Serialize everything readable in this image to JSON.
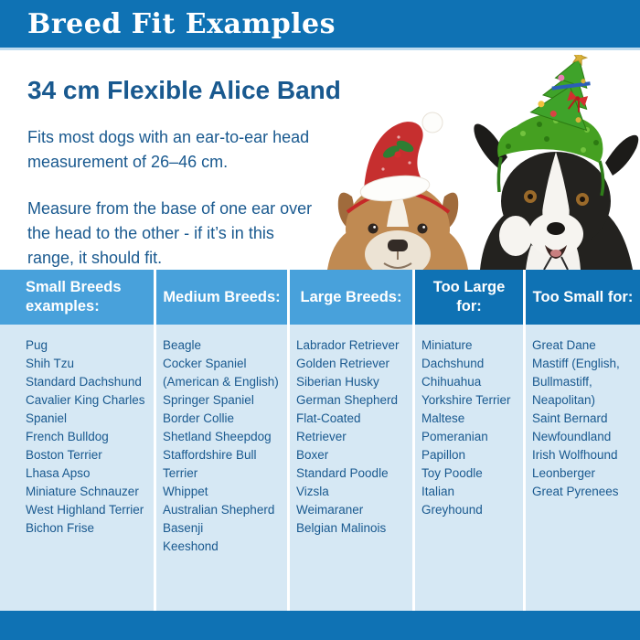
{
  "header": {
    "title": "Breed Fit Examples"
  },
  "product": {
    "title": "34 cm Flexible Alice Band",
    "fit_note": "Fits most dogs with an ear-to-ear head measurement of 26–46 cm.",
    "measure_note": "Measure from the base of one ear over the head to the other - if it’s in this range, it should fit."
  },
  "photo": {
    "description": "Two dogs wearing festive alice bands",
    "dog_left": "Bulldog puppy wearing a red Santa hat headband",
    "dog_right": "Border Collie wearing a green tinsel Christmas tree headband"
  },
  "columns": [
    {
      "label": "Small Breeds examples:",
      "tone": "light",
      "breeds": [
        "Pug",
        "Shih Tzu",
        "Standard Dachshund",
        "Cavalier King Charles Spaniel",
        "French Bulldog",
        "Boston Terrier",
        "Lhasa Apso",
        "Miniature Schnauzer",
        "West Highland Terrier",
        "Bichon Frise"
      ]
    },
    {
      "label": "Medium Breeds:",
      "tone": "light",
      "breeds": [
        "Beagle",
        "Cocker Spaniel (American & English)",
        "Springer Spaniel",
        "Border Collie",
        "Shetland Sheepdog",
        "Staffordshire Bull Terrier",
        "Whippet",
        "Australian Shepherd",
        "Basenji",
        "Keeshond"
      ]
    },
    {
      "label": "Large Breeds:",
      "tone": "light",
      "breeds": [
        "Labrador Retriever",
        "Golden Retriever",
        "Siberian Husky",
        "German Shepherd",
        "Flat-Coated Retriever",
        "Boxer",
        "Standard Poodle",
        "Vizsla",
        "Weimaraner",
        "Belgian Malinois"
      ]
    },
    {
      "label": "Too Large for:",
      "tone": "dark",
      "breeds": [
        "Miniature Dachshund",
        "Chihuahua",
        "Yorkshire Terrier",
        "Maltese",
        "Pomeranian",
        "Papillon",
        "Toy Poodle",
        "Italian Greyhound"
      ]
    },
    {
      "label": "Too Small for:",
      "tone": "dark",
      "breeds": [
        "Great Dane",
        "Mastiff (English, Bullmastiff, Neapolitan)",
        "Saint Bernard",
        "Newfoundland",
        "Irish Wolfhound",
        "Leonberger",
        "Great Pyrenees"
      ]
    }
  ],
  "colors": {
    "brand_blue": "#0f72b4",
    "light_blue_header": "#48a1db",
    "panel_blue": "#d6e8f4",
    "text_blue": "#19598f",
    "divider_light": "#bfdcef"
  }
}
